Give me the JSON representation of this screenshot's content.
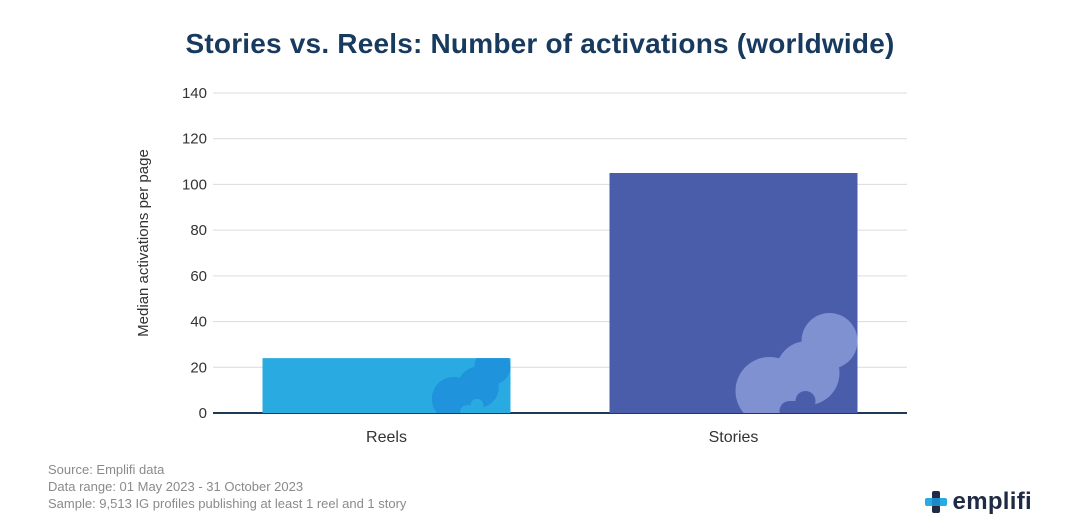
{
  "chart_data": {
    "type": "bar",
    "title": "Stories vs. Reels: Number of activations (worldwide)",
    "xlabel": "",
    "ylabel": "Median activations per page",
    "categories": [
      "Reels",
      "Stories"
    ],
    "values": [
      24,
      105
    ],
    "colors": [
      "#29abe2",
      "#4a5daa"
    ],
    "ylim": [
      0,
      140
    ],
    "yticks": [
      0,
      20,
      40,
      60,
      80,
      100,
      120,
      140
    ],
    "grid": true,
    "legend": "none"
  },
  "footnotes": {
    "source": "Source: Emplifi data",
    "range": "Data range: 01 May 2023 - 31 October 2023",
    "sample": "Sample: 9,513 IG profiles publishing at least 1 reel and 1 story"
  },
  "brand": {
    "name": "emplifi",
    "logo_icon": "emplifi-cross-logo-icon",
    "colors": [
      "#29abe2",
      "#1f2a44"
    ]
  }
}
